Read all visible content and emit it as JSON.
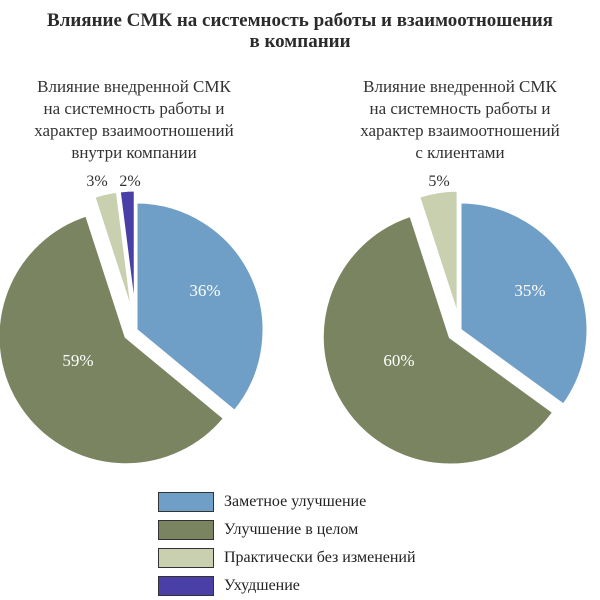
{
  "title": "Влияние СМК на системность работы и взаимоотношения\nв компании",
  "colors": {
    "Заметное улучшение": "#6f9fc6",
    "Улучшение в целом": "#7a8460",
    "Практически без изменений": "#c8d0b0",
    "Ухудшение": "#4a3fa6"
  },
  "chart_data": [
    {
      "type": "pie",
      "title": "Влияние внедренной СМК\nна системность работы и\nхарактер взаимоотношений\nвнутри компании",
      "slices": [
        {
          "label": "Заметное улучшение",
          "value": 36,
          "display": "36%"
        },
        {
          "label": "Улучшение в целом",
          "value": 59,
          "display": "59%"
        },
        {
          "label": "Практически без изменений",
          "value": 3,
          "display": "3%"
        },
        {
          "label": "Ухудшение",
          "value": 2,
          "display": "2%"
        }
      ]
    },
    {
      "type": "pie",
      "title": "Влияние внедренной СМК\nна системность работы и\nхарактер взаимоотношений\nс клиентами",
      "slices": [
        {
          "label": "Заметное улучшение",
          "value": 35,
          "display": "35%"
        },
        {
          "label": "Улучшение в целом",
          "value": 60,
          "display": "60%"
        },
        {
          "label": "Практически без изменений",
          "value": 5,
          "display": "5%"
        }
      ]
    }
  ],
  "legend": {
    "items": [
      "Заметное улучшение",
      "Улучшение в целом",
      "Практически без изменений",
      "Ухудшение"
    ]
  }
}
